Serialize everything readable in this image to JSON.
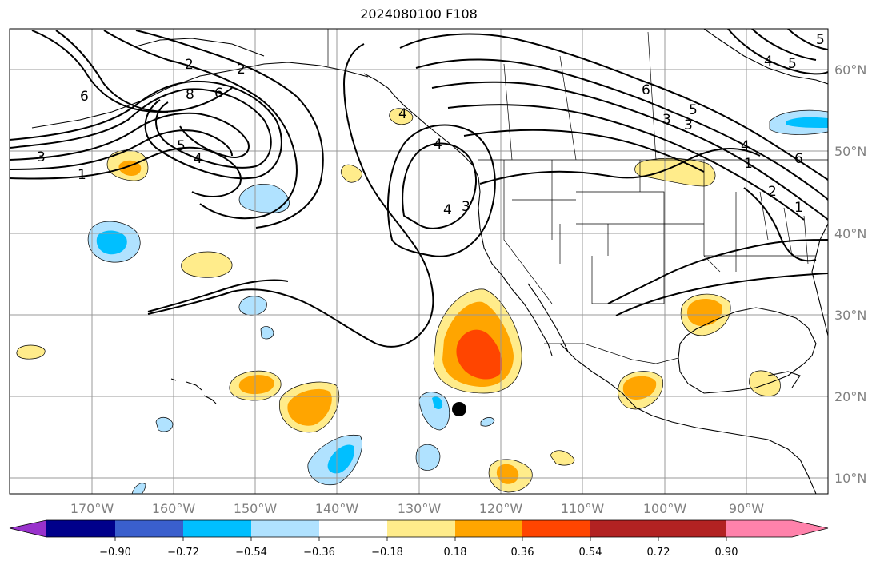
{
  "title": "2024080100 F108",
  "map": {
    "lon_labels": [
      "170°W",
      "160°W",
      "150°W",
      "140°W",
      "130°W",
      "120°W",
      "110°W",
      "100°W",
      "90°W"
    ],
    "lat_labels": [
      "60°N",
      "50°N",
      "40°N",
      "30°N",
      "20°N",
      "10°N"
    ],
    "contour_labels": [
      "2",
      "6",
      "8",
      "6",
      "4",
      "3",
      "1",
      "5",
      "4",
      "2",
      "5",
      "4",
      "3",
      "6",
      "5",
      "3",
      "4",
      "6",
      "4",
      "5",
      "1",
      "3",
      "4",
      "1",
      "2"
    ]
  },
  "colorbar": {
    "tick_labels": [
      "−0.90",
      "−0.72",
      "−0.54",
      "−0.36",
      "−0.18",
      "0.18",
      "0.36",
      "0.54",
      "0.72",
      "0.90"
    ],
    "colors": [
      "#9932cc",
      "#00008b",
      "#3a5fcd",
      "#00bfff",
      "#b0e2ff",
      "#ffffff",
      "#ffec8b",
      "#ffa500",
      "#ff4500",
      "#b22222",
      "#ff82ab"
    ]
  }
}
